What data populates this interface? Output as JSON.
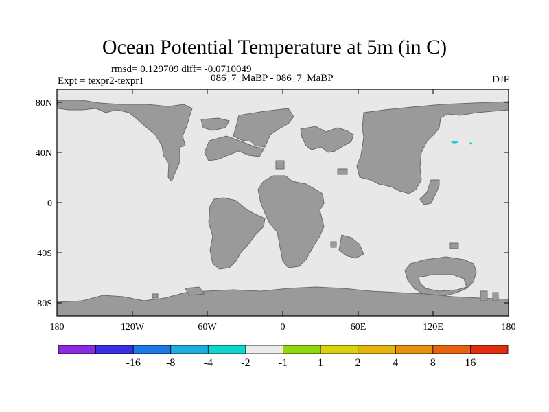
{
  "title": "Ocean Potential Temperature at 5m (in C)",
  "stats": "rmsd= 0.129709 diff= -0.0710049",
  "experiment": "Expt = texpr2-texpr1",
  "center_label": "086_7_MaBP - 086_7_MaBP",
  "season": "DJF",
  "lat_ticks": [
    "80N",
    "40N",
    "0",
    "40S",
    "80S"
  ],
  "lon_ticks": [
    "180",
    "120W",
    "60W",
    "0",
    "60E",
    "120E",
    "180"
  ],
  "colorbar": {
    "colors": [
      "#8a2be2",
      "#3a2ee0",
      "#1e78e6",
      "#1eaee0",
      "#10d6d0",
      "#ebebeb",
      "#8fd80f",
      "#d6d20f",
      "#e6b40f",
      "#e6900f",
      "#e6640f",
      "#e02d0f"
    ],
    "labels": [
      "-16",
      "-8",
      "-4",
      "-2",
      "-1",
      "1",
      "2",
      "4",
      "8",
      "16"
    ]
  },
  "colors": {
    "ocean": "#e8e8e8",
    "land": "#9a9a9a",
    "anomaly": "#1ec8d8"
  },
  "map": {
    "lon_range": [
      -180,
      180
    ],
    "lat_range": [
      -90,
      90
    ],
    "anomaly_points": [
      {
        "name": "anomaly-spot-north-pacific",
        "lon": 137,
        "lat": 48
      },
      {
        "name": "anomaly-spot-north-pacific-small",
        "lon": 150,
        "lat": 47
      }
    ]
  }
}
